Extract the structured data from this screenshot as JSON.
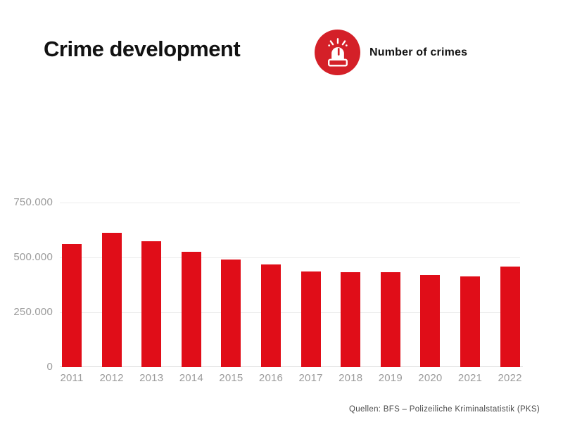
{
  "header": {
    "title": "Crime development",
    "legend_label": "Number of crimes"
  },
  "chart_data": {
    "type": "bar",
    "title": "Crime development",
    "series_label": "Number of crimes",
    "categories": [
      "2011",
      "2012",
      "2013",
      "2014",
      "2015",
      "2016",
      "2017",
      "2018",
      "2019",
      "2020",
      "2021",
      "2022"
    ],
    "values": [
      560000,
      613000,
      575000,
      527000,
      490000,
      467000,
      436000,
      432000,
      433000,
      420000,
      415000,
      458000
    ],
    "xlabel": "",
    "ylabel": "",
    "ylim": [
      0,
      750000
    ],
    "yticks": [
      0,
      250000,
      500000,
      750000
    ],
    "ytick_labels": [
      "0",
      "250.000",
      "500.000",
      "750.000"
    ],
    "grid": true,
    "legend_position": "top-right-of-title",
    "bar_color": "#e00d18"
  },
  "footer": {
    "source": "Quellen: BFS – Polizeiliche Kriminalstatistik (PKS)"
  },
  "colors": {
    "bar_red": "#e00d18",
    "icon_red": "#d42028",
    "icon_glyph": "#ffffff",
    "text_dark": "#121212",
    "axis_gray": "#9b9b9b",
    "gridline_gray": "#ebebeb",
    "source_gray": "#4b4b4b"
  }
}
